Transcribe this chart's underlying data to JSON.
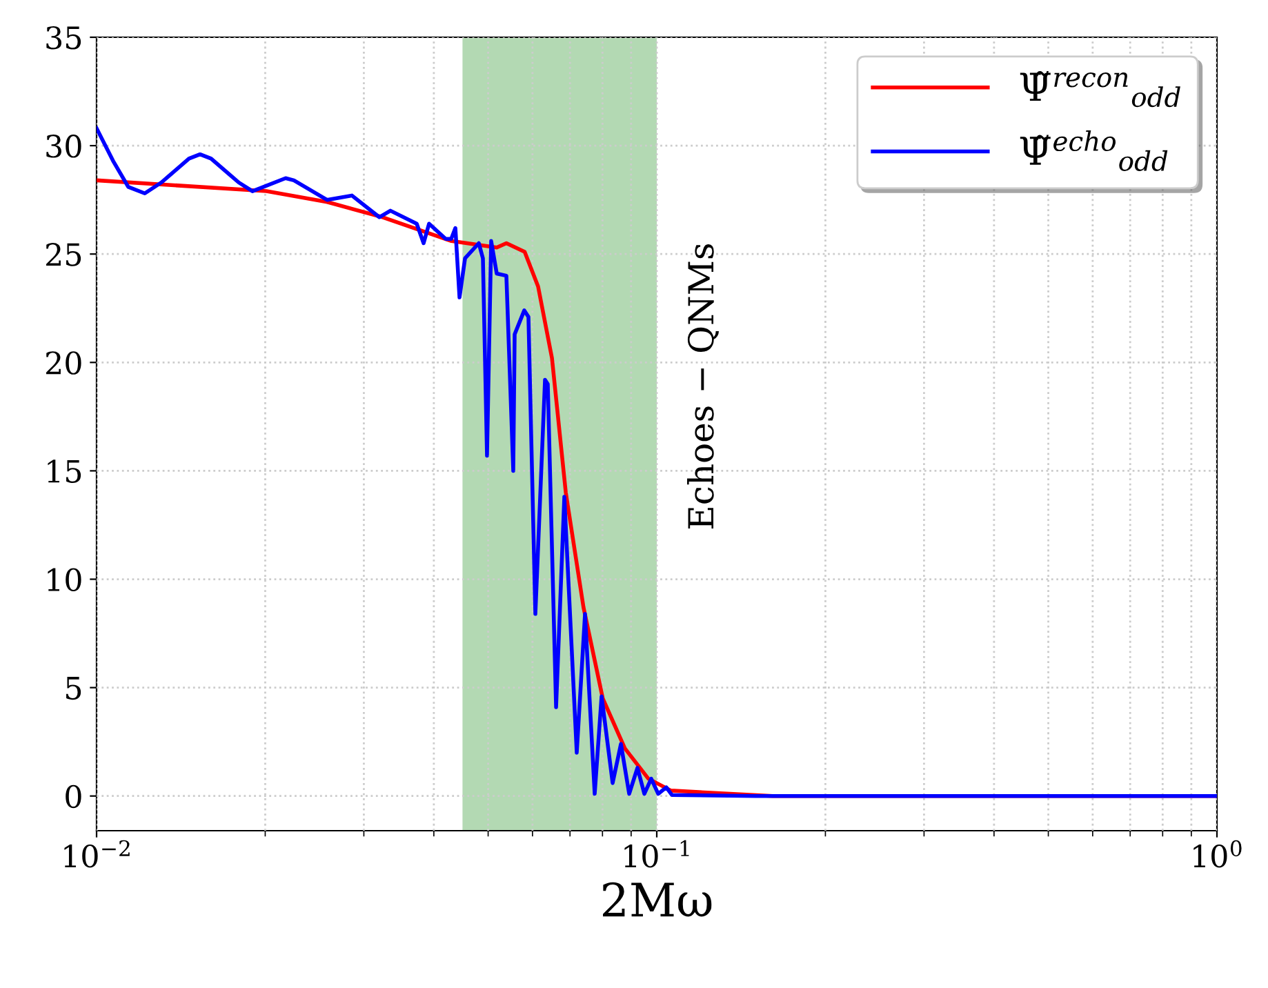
{
  "chart_data": {
    "type": "line",
    "xlabel": "2Mω",
    "log": "x",
    "grid": true,
    "legend": "top right",
    "line_style": "solid",
    "marker": "none",
    "xlim": [
      0.01,
      1
    ],
    "xticks": [
      {
        "value": 0.01,
        "label": "10$^{−2}$"
      },
      {
        "value": 0.1,
        "label": "10$^{−1}$"
      },
      {
        "value": 1,
        "label": "10$^{0}$"
      }
    ],
    "ylim": [
      -1.6,
      35
    ],
    "yticks": [
      0,
      5,
      10,
      15,
      20,
      25,
      30,
      35
    ],
    "bands": [
      {
        "axis": "x",
        "from": 0.045,
        "to": 0.1,
        "color": "#b3d9b3"
      }
    ],
    "annotations": [
      "Echoes − QNMs"
    ],
    "series": [
      {
        "name": "Ψ̃$^{recon}$$_{odd}$",
        "color": "#ff0000",
        "x": [
          0.01,
          0.0201,
          0.0258,
          0.0324,
          0.043,
          0.0518,
          0.0539,
          0.0581,
          0.0614,
          0.065,
          0.0688,
          0.074,
          0.0801,
          0.0877,
          0.0966,
          0.106,
          0.161,
          0.3,
          1
        ],
        "values": [
          28.4,
          27.9,
          27.4,
          26.7,
          25.6,
          25.3,
          25.5,
          25.1,
          23.5,
          20.2,
          14.0,
          8.7,
          4.5,
          2.2,
          0.8,
          0.25,
          0,
          0,
          0
        ]
      },
      {
        "name": "Ψ̃$^{echo}$$_{odd}$",
        "color": "#0000ff",
        "x": [
          0.01,
          0.0107,
          0.01139,
          0.01219,
          0.01305,
          0.01462,
          0.0153,
          0.01601,
          0.01794,
          0.01898,
          0.02175,
          0.0225,
          0.02578,
          0.02856,
          0.03197,
          0.03346,
          0.03728,
          0.03835,
          0.03922,
          0.042,
          0.04296,
          0.0437,
          0.04445,
          0.04547,
          0.04812,
          0.04894,
          0.04977,
          0.05063,
          0.0518,
          0.05389,
          0.05544,
          0.05576,
          0.05801,
          0.05901,
          0.06071,
          0.06317,
          0.06389,
          0.06611,
          0.06839,
          0.07197,
          0.07446,
          0.07748,
          0.07971,
          0.08341,
          0.0863,
          0.08928,
          0.09237,
          0.09502,
          0.09775,
          0.1006,
          0.104,
          0.1064,
          0.15,
          0.3,
          1
        ],
        "values": [
          30.8,
          29.3,
          28.1,
          27.8,
          28.3,
          29.4,
          29.6,
          29.4,
          28.3,
          27.9,
          28.5,
          28.4,
          27.5,
          27.7,
          26.7,
          27.0,
          26.4,
          25.5,
          26.4,
          25.7,
          25.7,
          26.2,
          23.0,
          24.8,
          25.5,
          24.8,
          15.7,
          25.6,
          24.1,
          24.0,
          15.0,
          21.3,
          22.4,
          22.1,
          8.4,
          19.2,
          19.0,
          4.1,
          13.8,
          2.0,
          8.4,
          0.1,
          4.6,
          0.6,
          2.4,
          0.1,
          1.3,
          0.1,
          0.8,
          0.1,
          0.4,
          0.05,
          0,
          0,
          0
        ]
      }
    ]
  }
}
